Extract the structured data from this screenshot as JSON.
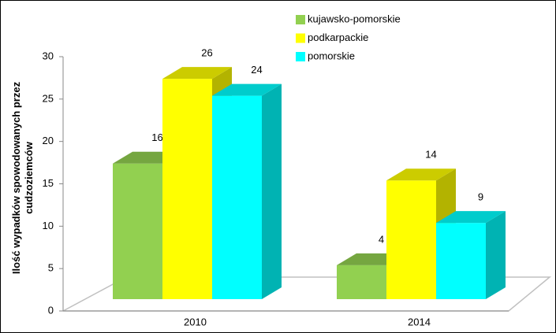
{
  "chart_data": {
    "type": "bar3d",
    "ylabel": "Ilość wypadków spowodowanych przez cudzoziemców",
    "categories": [
      "2010",
      "2014"
    ],
    "series": [
      {
        "name": "kujawsko-pomorskie",
        "color": "#92d050",
        "values": [
          16,
          4
        ]
      },
      {
        "name": "podkarpackie",
        "color": "#ffff00",
        "values": [
          26,
          14
        ]
      },
      {
        "name": "pomorskie",
        "color": "#00ffff",
        "values": [
          24,
          9
        ]
      }
    ],
    "ylim": [
      0,
      30
    ],
    "yticks": [
      0,
      5,
      10,
      15,
      20,
      25,
      30
    ],
    "legend": "top"
  }
}
